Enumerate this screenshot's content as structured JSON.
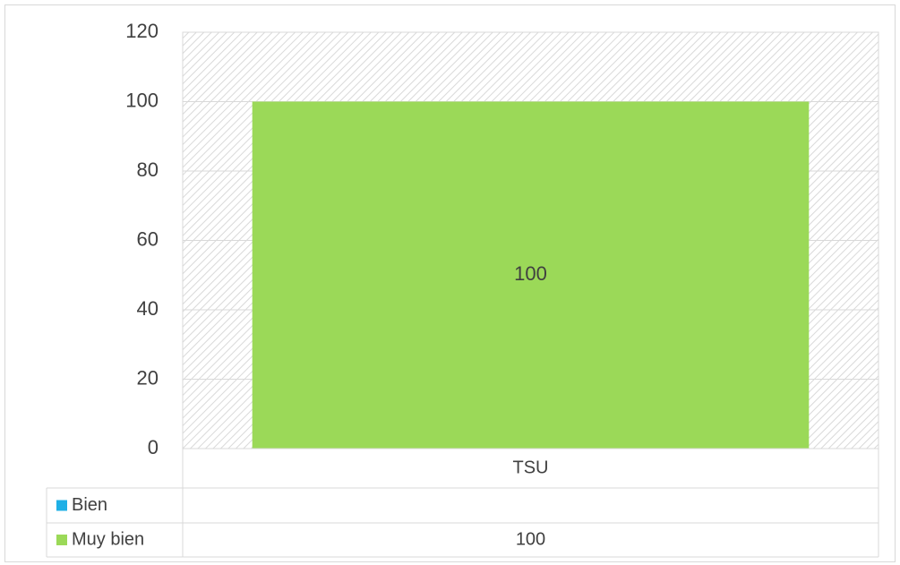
{
  "chart_data": {
    "type": "stacked_bar",
    "categories": [
      "TSU"
    ],
    "series": [
      {
        "name": "Bien",
        "color": "#1fb0e6",
        "values": [
          null
        ]
      },
      {
        "name": "Muy bien",
        "color": "#9bd958",
        "values": [
          100
        ]
      }
    ],
    "ylim": [
      0,
      120
    ],
    "yticks": [
      0,
      20,
      40,
      60,
      80,
      100,
      120
    ],
    "grid": true,
    "data_table": true
  }
}
